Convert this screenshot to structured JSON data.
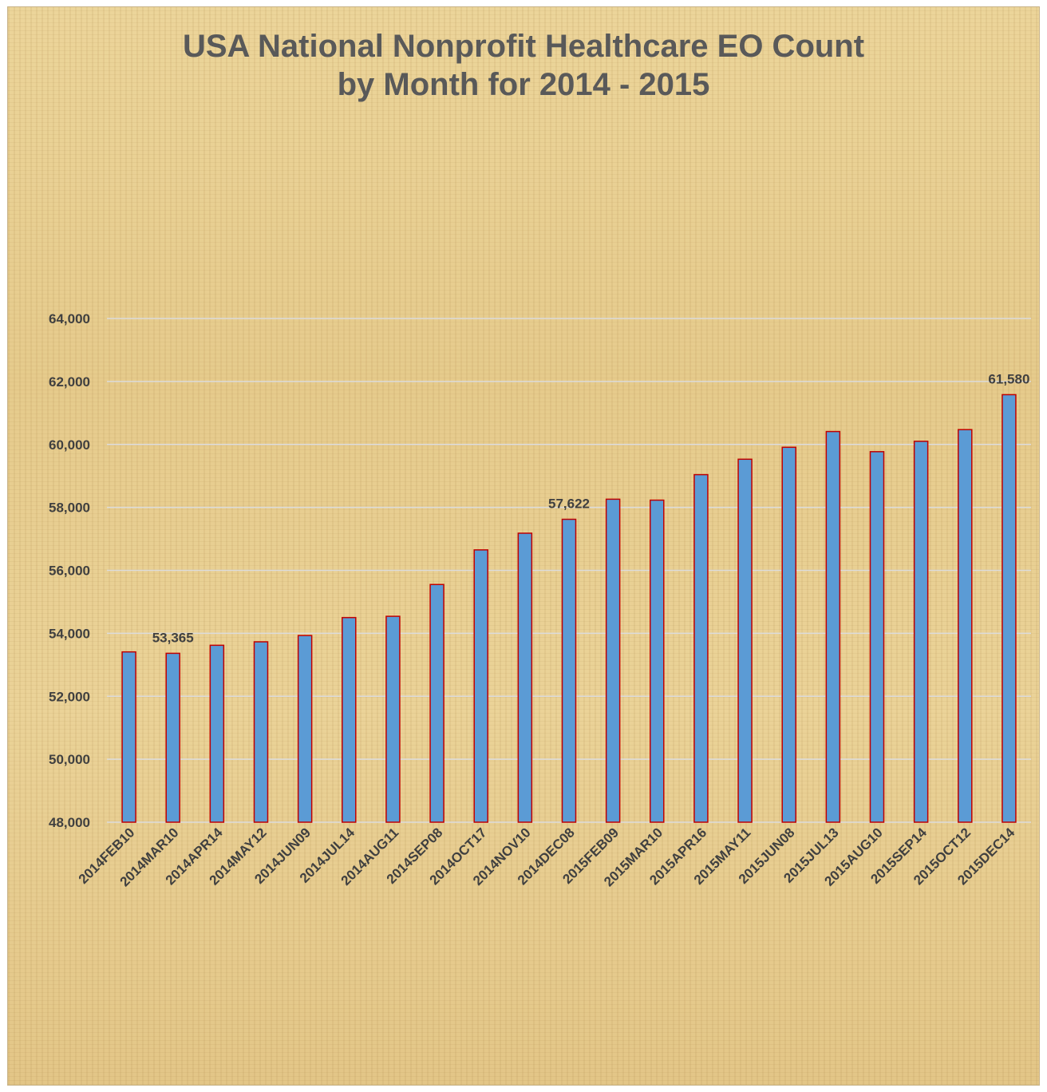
{
  "chart_data": {
    "type": "bar",
    "title": [
      "USA National Nonprofit Healthcare EO Count",
      "by Month for 2014 - 2015"
    ],
    "xlabel": "",
    "ylabel": "",
    "categories": [
      "2014FEB10",
      "2014MAR10",
      "2014APR14",
      "2014MAY12",
      "2014JUN09",
      "2014JUL14",
      "2014AUG11",
      "2014SEP08",
      "2014OCT17",
      "2014NOV10",
      "2014DEC08",
      "2015FEB09",
      "2015MAR10",
      "2015APR16",
      "2015MAY11",
      "2015JUN08",
      "2015JUL13",
      "2015AUG10",
      "2015SEP14",
      "2015OCT12",
      "2015DEC14"
    ],
    "values": [
      53410,
      53365,
      53620,
      53730,
      53930,
      54500,
      54540,
      55550,
      56650,
      57180,
      57622,
      58260,
      58230,
      59040,
      59530,
      59910,
      60410,
      59770,
      60100,
      60470,
      61580
    ],
    "data_labels": [
      {
        "index": 1,
        "text": "53,365"
      },
      {
        "index": 10,
        "text": "57,622"
      },
      {
        "index": 20,
        "text": "61,580"
      }
    ],
    "ylim": [
      48000,
      64000
    ],
    "yticks": [
      48000,
      50000,
      52000,
      54000,
      56000,
      58000,
      60000,
      62000,
      64000
    ],
    "ytick_labels": [
      "48,000",
      "50,000",
      "52,000",
      "54,000",
      "56,000",
      "58,000",
      "60,000",
      "62,000",
      "64,000"
    ],
    "grid": true,
    "legend": "none",
    "colors": {
      "bar_fill": "#5b9bd5",
      "bar_edge": "#c00000",
      "grid": "#dcdcdc",
      "text": "#404040",
      "title": "#595959"
    }
  }
}
